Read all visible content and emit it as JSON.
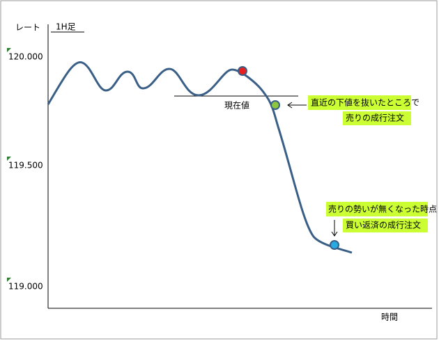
{
  "axis": {
    "y_label": "レート",
    "timeframe": "1H足",
    "x_label": "時間",
    "ticks": [
      "120.000",
      "119.500",
      "119.000"
    ]
  },
  "annotations": {
    "current": "現在値",
    "sell_1": "直近の下値を抜いたところで",
    "sell_2": "売りの成行注文",
    "buy_1": "売りの勢いが無くなった時点",
    "buy_2": "買い返済の成行注文"
  }
}
